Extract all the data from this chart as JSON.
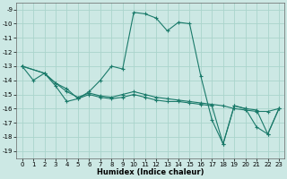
{
  "xlabel": "Humidex (Indice chaleur)",
  "ylabel": "",
  "bg_color": "#cce8e4",
  "grid_color": "#aad4cc",
  "line_color": "#1a7a6a",
  "xlim": [
    -0.5,
    23.5
  ],
  "ylim": [
    -19.5,
    -8.5
  ],
  "yticks": [
    -19,
    -18,
    -17,
    -16,
    -15,
    -14,
    -13,
    -12,
    -11,
    -10,
    -9
  ],
  "xticks": [
    0,
    1,
    2,
    3,
    4,
    5,
    6,
    7,
    8,
    9,
    10,
    11,
    12,
    13,
    14,
    15,
    16,
    17,
    18,
    19,
    20,
    21,
    22,
    23
  ],
  "series": [
    {
      "x": [
        0,
        1,
        2,
        3,
        4,
        5,
        6,
        7,
        8,
        9,
        10,
        11,
        12,
        13,
        14,
        15,
        16,
        17,
        18,
        19,
        20,
        21,
        22,
        23
      ],
      "y": [
        -13.0,
        -14.0,
        -13.5,
        -14.4,
        -15.5,
        -15.3,
        -14.8,
        -14.0,
        -13.0,
        -13.2,
        -9.2,
        -9.3,
        -9.6,
        -10.5,
        -9.9,
        -10.0,
        -13.7,
        -16.8,
        -18.5,
        -15.8,
        -16.0,
        -17.3,
        -17.8,
        -16.0
      ]
    },
    {
      "x": [
        0,
        2,
        3,
        4,
        5,
        6,
        7,
        8,
        9,
        10,
        11,
        12,
        13,
        14,
        15,
        16,
        17,
        18,
        19,
        20,
        21,
        22,
        23
      ],
      "y": [
        -13.0,
        -13.5,
        -14.2,
        -14.8,
        -15.2,
        -14.9,
        -15.1,
        -15.2,
        -15.0,
        -14.8,
        -15.0,
        -15.2,
        -15.3,
        -15.4,
        -15.5,
        -15.6,
        -15.7,
        -15.8,
        -16.0,
        -16.1,
        -16.2,
        -16.2,
        -16.0
      ]
    },
    {
      "x": [
        0,
        2,
        3,
        4,
        5,
        6,
        7,
        8,
        9,
        10,
        11,
        12,
        13,
        14,
        15,
        16,
        17,
        18,
        19,
        20,
        21,
        22,
        23
      ],
      "y": [
        -13.0,
        -13.5,
        -14.2,
        -14.6,
        -15.3,
        -15.0,
        -15.2,
        -15.3,
        -15.2,
        -15.0,
        -15.2,
        -15.4,
        -15.5,
        -15.5,
        -15.6,
        -15.7,
        -15.8,
        -18.5,
        -15.8,
        -16.0,
        -16.1,
        -17.8,
        -16.0
      ]
    }
  ],
  "marker": "+",
  "markersize": 3,
  "linewidth": 0.8,
  "tick_fontsize": 5,
  "xlabel_fontsize": 6
}
